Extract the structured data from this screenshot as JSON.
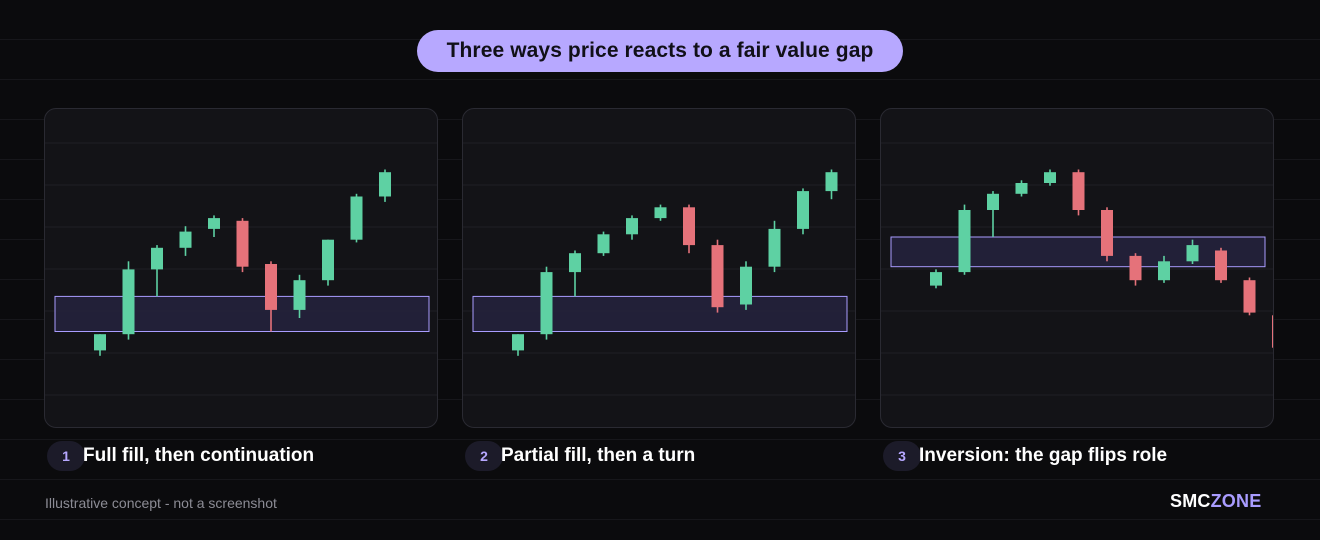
{
  "title": "Three ways price reacts to a fair value gap",
  "colors": {
    "bull": "#5ed1a3",
    "bear": "#e5727a",
    "gap_fill": "#25223c",
    "gap_stroke": "#a99cff",
    "accent": "#b7a8ff"
  },
  "panels": [
    {
      "number": "1",
      "caption": "Full fill, then continuation"
    },
    {
      "number": "2",
      "caption": "Partial fill, then a turn"
    },
    {
      "number": "3",
      "caption": "Inversion: the gap flips role"
    }
  ],
  "footer": {
    "note": "Illustrative concept - not a screenshot",
    "brand_part1": "SMC",
    "brand_part2": "ZONE"
  },
  "chart_data": [
    {
      "type": "candlestick",
      "title": "",
      "ylim": [
        0,
        100
      ],
      "gap_zone": {
        "low": 25,
        "high": 38
      },
      "candles": [
        {
          "o": 18,
          "h": 24,
          "l": 16,
          "c": 24
        },
        {
          "o": 24,
          "h": 51,
          "l": 22,
          "c": 48
        },
        {
          "o": 48,
          "h": 57,
          "l": 38,
          "c": 56
        },
        {
          "o": 56,
          "h": 64,
          "l": 53,
          "c": 62
        },
        {
          "o": 63,
          "h": 68,
          "l": 60,
          "c": 67
        },
        {
          "o": 66,
          "h": 67,
          "l": 47,
          "c": 49
        },
        {
          "o": 50,
          "h": 51,
          "l": 25,
          "c": 33
        },
        {
          "o": 33,
          "h": 46,
          "l": 30,
          "c": 44
        },
        {
          "o": 44,
          "h": 59,
          "l": 42,
          "c": 59
        },
        {
          "o": 59,
          "h": 76,
          "l": 58,
          "c": 75
        },
        {
          "o": 75,
          "h": 85,
          "l": 73,
          "c": 84
        }
      ]
    },
    {
      "type": "candlestick",
      "title": "",
      "ylim": [
        0,
        100
      ],
      "gap_zone": {
        "low": 25,
        "high": 38
      },
      "candles": [
        {
          "o": 18,
          "h": 24,
          "l": 16,
          "c": 24
        },
        {
          "o": 24,
          "h": 49,
          "l": 22,
          "c": 47
        },
        {
          "o": 47,
          "h": 55,
          "l": 38,
          "c": 54
        },
        {
          "o": 54,
          "h": 62,
          "l": 53,
          "c": 61
        },
        {
          "o": 61,
          "h": 68,
          "l": 59,
          "c": 67
        },
        {
          "o": 67,
          "h": 72,
          "l": 66,
          "c": 71
        },
        {
          "o": 71,
          "h": 72,
          "l": 54,
          "c": 57
        },
        {
          "o": 57,
          "h": 59,
          "l": 32,
          "c": 34
        },
        {
          "o": 35,
          "h": 51,
          "l": 33,
          "c": 49
        },
        {
          "o": 49,
          "h": 66,
          "l": 47,
          "c": 63
        },
        {
          "o": 63,
          "h": 78,
          "l": 61,
          "c": 77
        },
        {
          "o": 77,
          "h": 85,
          "l": 74,
          "c": 84
        }
      ]
    },
    {
      "type": "candlestick",
      "title": "",
      "ylim": [
        0,
        100
      ],
      "gap_zone": {
        "low": 49,
        "high": 60
      },
      "candles": [
        {
          "o": 42,
          "h": 48,
          "l": 41,
          "c": 47
        },
        {
          "o": 47,
          "h": 72,
          "l": 46,
          "c": 70
        },
        {
          "o": 70,
          "h": 77,
          "l": 60,
          "c": 76
        },
        {
          "o": 76,
          "h": 81,
          "l": 75,
          "c": 80
        },
        {
          "o": 80,
          "h": 85,
          "l": 79,
          "c": 84
        },
        {
          "o": 84,
          "h": 85,
          "l": 68,
          "c": 70
        },
        {
          "o": 70,
          "h": 71,
          "l": 51,
          "c": 53
        },
        {
          "o": 53,
          "h": 54,
          "l": 42,
          "c": 44
        },
        {
          "o": 44,
          "h": 53,
          "l": 43,
          "c": 51
        },
        {
          "o": 51,
          "h": 59,
          "l": 50,
          "c": 57
        },
        {
          "o": 55,
          "h": 56,
          "l": 43,
          "c": 44
        },
        {
          "o": 44,
          "h": 45,
          "l": 31,
          "c": 32
        },
        {
          "o": 31,
          "h": 33,
          "l": 16,
          "c": 19
        }
      ]
    }
  ]
}
